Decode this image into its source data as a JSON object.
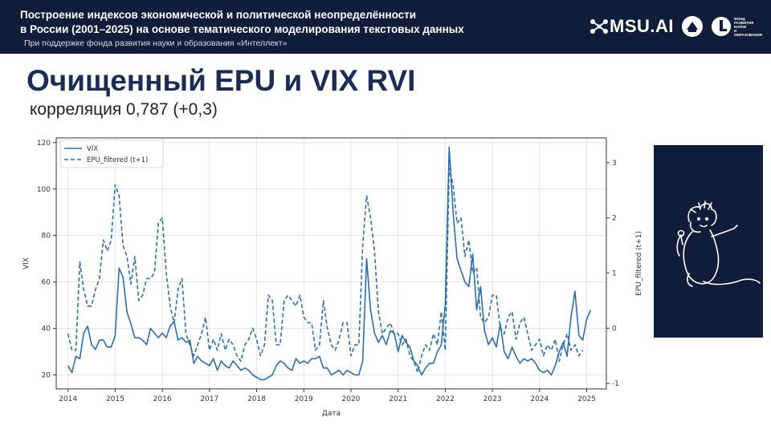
{
  "header": {
    "title_line1": "Построение индексов экономической и политической неопределённости",
    "title_line2": "в России (2001–2025) на основе тематического моделирования текстовых данных",
    "subtitle": "При поддержке фонда развития науки и образования «Интеллект»",
    "logo_text": "MSU.AI",
    "fund_logo_lines": [
      "ФОНД",
      "РАЗВИТИЯ",
      "НАУКИ",
      "И ОБРАЗОВАНИЯ"
    ]
  },
  "slide": {
    "title": "Очищенный EPU и VIX RVI",
    "subtitle": "корреляция 0,787 (+0,3)"
  },
  "colors": {
    "header_bg": "#0f1c3a",
    "title": "#1b2c55",
    "series": "#2e6ea6"
  },
  "chart_data": {
    "type": "line",
    "xlabel": "Дата",
    "ylabel": "VIX",
    "ylabel_right": "EPU_filtered (t+1)",
    "x_ticks": [
      "2014",
      "2015",
      "2016",
      "2017",
      "2018",
      "2019",
      "2020",
      "2021",
      "2022",
      "2023",
      "2024",
      "2025"
    ],
    "y_ticks": [
      20,
      40,
      60,
      80,
      100,
      120
    ],
    "y2_ticks": [
      -1,
      0,
      1,
      2,
      3
    ],
    "ylim": [
      14,
      122
    ],
    "y2lim": [
      -1.1,
      3.45
    ],
    "xlim": [
      "2013-10",
      "2025-06"
    ],
    "grid": true,
    "legend_position": "top-left",
    "series": [
      {
        "name": "VIX",
        "style": "solid",
        "axis": "left",
        "points": [
          [
            "2014-01",
            24
          ],
          [
            "2014-02",
            21
          ],
          [
            "2014-03",
            28
          ],
          [
            "2014-04",
            27
          ],
          [
            "2014-05",
            38
          ],
          [
            "2014-06",
            41
          ],
          [
            "2014-07",
            33
          ],
          [
            "2014-08",
            31
          ],
          [
            "2014-09",
            35
          ],
          [
            "2014-10",
            35
          ],
          [
            "2014-11",
            32
          ],
          [
            "2014-12",
            32
          ],
          [
            "2015-01",
            37
          ],
          [
            "2015-02",
            66
          ],
          [
            "2015-03",
            62
          ],
          [
            "2015-04",
            47
          ],
          [
            "2015-05",
            42
          ],
          [
            "2015-06",
            36
          ],
          [
            "2015-07",
            36
          ],
          [
            "2015-08",
            35
          ],
          [
            "2015-09",
            33
          ],
          [
            "2015-10",
            40
          ],
          [
            "2015-11",
            38
          ],
          [
            "2015-12",
            36
          ],
          [
            "2016-01",
            38
          ],
          [
            "2016-02",
            36
          ],
          [
            "2016-03",
            41
          ],
          [
            "2016-04",
            43
          ],
          [
            "2016-05",
            35
          ],
          [
            "2016-06",
            36
          ],
          [
            "2016-07",
            34
          ],
          [
            "2016-08",
            35
          ],
          [
            "2016-09",
            25
          ],
          [
            "2016-10",
            28
          ],
          [
            "2016-11",
            26
          ],
          [
            "2016-12",
            25
          ],
          [
            "2017-01",
            24
          ],
          [
            "2017-02",
            27
          ],
          [
            "2017-03",
            22
          ],
          [
            "2017-04",
            26
          ],
          [
            "2017-05",
            24
          ],
          [
            "2017-06",
            23
          ],
          [
            "2017-07",
            26
          ],
          [
            "2017-08",
            24
          ],
          [
            "2017-09",
            22
          ],
          [
            "2017-10",
            23
          ],
          [
            "2017-11",
            22
          ],
          [
            "2017-12",
            20
          ],
          [
            "2018-01",
            19
          ],
          [
            "2018-02",
            18
          ],
          [
            "2018-03",
            18
          ],
          [
            "2018-04",
            19
          ],
          [
            "2018-05",
            20
          ],
          [
            "2018-06",
            24
          ],
          [
            "2018-07",
            26
          ],
          [
            "2018-08",
            25
          ],
          [
            "2018-09",
            23
          ],
          [
            "2018-10",
            22
          ],
          [
            "2018-11",
            27
          ],
          [
            "2018-12",
            25
          ],
          [
            "2019-01",
            26
          ],
          [
            "2019-02",
            25
          ],
          [
            "2019-03",
            27
          ],
          [
            "2019-04",
            27
          ],
          [
            "2019-05",
            28
          ],
          [
            "2019-06",
            23
          ],
          [
            "2019-07",
            23
          ],
          [
            "2019-08",
            20
          ],
          [
            "2019-09",
            21
          ],
          [
            "2019-10",
            22
          ],
          [
            "2019-11",
            20
          ],
          [
            "2019-12",
            22
          ],
          [
            "2020-01",
            21
          ],
          [
            "2020-02",
            20
          ],
          [
            "2020-03",
            20
          ],
          [
            "2020-04",
            26
          ],
          [
            "2020-05",
            70
          ],
          [
            "2020-06",
            48
          ],
          [
            "2020-07",
            38
          ],
          [
            "2020-08",
            34
          ],
          [
            "2020-09",
            37
          ],
          [
            "2020-10",
            33
          ],
          [
            "2020-11",
            39
          ],
          [
            "2020-12",
            38
          ],
          [
            "2021-01",
            30
          ],
          [
            "2021-02",
            37
          ],
          [
            "2021-03",
            34
          ],
          [
            "2021-04",
            32
          ],
          [
            "2021-05",
            26
          ],
          [
            "2021-06",
            24
          ],
          [
            "2021-07",
            20
          ],
          [
            "2021-08",
            23
          ],
          [
            "2021-09",
            25
          ],
          [
            "2021-10",
            25
          ],
          [
            "2021-11",
            30
          ],
          [
            "2021-12",
            33
          ],
          [
            "2022-01",
            50
          ],
          [
            "2022-02",
            118
          ],
          [
            "2022-03",
            90
          ],
          [
            "2022-04",
            70
          ],
          [
            "2022-05",
            65
          ],
          [
            "2022-06",
            60
          ],
          [
            "2022-07",
            58
          ],
          [
            "2022-08",
            72
          ],
          [
            "2022-09",
            48
          ],
          [
            "2022-10",
            58
          ],
          [
            "2022-11",
            39
          ],
          [
            "2022-12",
            33
          ],
          [
            "2023-01",
            36
          ],
          [
            "2023-02",
            32
          ],
          [
            "2023-03",
            42
          ],
          [
            "2023-04",
            30
          ],
          [
            "2023-05",
            27
          ],
          [
            "2023-06",
            32
          ],
          [
            "2023-07",
            28
          ],
          [
            "2023-08",
            25
          ],
          [
            "2023-09",
            27
          ],
          [
            "2023-10",
            26
          ],
          [
            "2023-11",
            27
          ],
          [
            "2023-12",
            25
          ],
          [
            "2024-01",
            22
          ],
          [
            "2024-02",
            21
          ],
          [
            "2024-03",
            22
          ],
          [
            "2024-04",
            20
          ],
          [
            "2024-05",
            24
          ],
          [
            "2024-06",
            30
          ],
          [
            "2024-07",
            34
          ],
          [
            "2024-08",
            28
          ],
          [
            "2024-09",
            45
          ],
          [
            "2024-10",
            56
          ],
          [
            "2024-11",
            37
          ],
          [
            "2024-12",
            35
          ],
          [
            "2025-01",
            44
          ],
          [
            "2025-02",
            48
          ]
        ]
      },
      {
        "name": "EPU_filtered (t+1)",
        "style": "dashed",
        "axis": "right",
        "points": [
          [
            "2014-01",
            -0.1
          ],
          [
            "2014-02",
            -0.4
          ],
          [
            "2014-03",
            -0.4
          ],
          [
            "2014-04",
            1.2
          ],
          [
            "2014-05",
            0.7
          ],
          [
            "2014-06",
            0.4
          ],
          [
            "2014-07",
            0.4
          ],
          [
            "2014-08",
            0.7
          ],
          [
            "2014-09",
            0.9
          ],
          [
            "2014-10",
            1.6
          ],
          [
            "2014-11",
            1.4
          ],
          [
            "2014-12",
            1.6
          ],
          [
            "2015-01",
            2.6
          ],
          [
            "2015-02",
            2.4
          ],
          [
            "2015-03",
            1.5
          ],
          [
            "2015-04",
            1.3
          ],
          [
            "2015-05",
            0.8
          ],
          [
            "2015-06",
            1.3
          ],
          [
            "2015-07",
            0.5
          ],
          [
            "2015-08",
            0.6
          ],
          [
            "2015-09",
            0.9
          ],
          [
            "2015-10",
            0.9
          ],
          [
            "2015-11",
            1.0
          ],
          [
            "2015-12",
            1.9
          ],
          [
            "2016-01",
            2.0
          ],
          [
            "2016-02",
            1.0
          ],
          [
            "2016-03",
            0.4
          ],
          [
            "2016-04",
            0.1
          ],
          [
            "2016-05",
            0.7
          ],
          [
            "2016-06",
            0.9
          ],
          [
            "2016-07",
            -0.1
          ],
          [
            "2016-08",
            -0.3
          ],
          [
            "2016-09",
            -0.5
          ],
          [
            "2016-10",
            -0.3
          ],
          [
            "2016-11",
            -0.1
          ],
          [
            "2016-12",
            0.2
          ],
          [
            "2017-01",
            -0.4
          ],
          [
            "2017-02",
            -0.2
          ],
          [
            "2017-03",
            -0.4
          ],
          [
            "2017-04",
            -0.1
          ],
          [
            "2017-05",
            -0.4
          ],
          [
            "2017-06",
            -0.2
          ],
          [
            "2017-07",
            -0.3
          ],
          [
            "2017-08",
            -0.5
          ],
          [
            "2017-09",
            -0.6
          ],
          [
            "2017-10",
            -0.3
          ],
          [
            "2017-11",
            -0.2
          ],
          [
            "2017-12",
            0.0
          ],
          [
            "2018-01",
            -0.2
          ],
          [
            "2018-02",
            -0.5
          ],
          [
            "2018-03",
            -0.3
          ],
          [
            "2018-04",
            0.6
          ],
          [
            "2018-05",
            0.5
          ],
          [
            "2018-06",
            -0.3
          ],
          [
            "2018-07",
            -0.3
          ],
          [
            "2018-08",
            0.5
          ],
          [
            "2018-09",
            0.6
          ],
          [
            "2018-10",
            0.5
          ],
          [
            "2018-11",
            0.4
          ],
          [
            "2018-12",
            0.6
          ],
          [
            "2019-01",
            0.2
          ],
          [
            "2019-02",
            0.1
          ],
          [
            "2019-03",
            0.1
          ],
          [
            "2019-04",
            -0.4
          ],
          [
            "2019-05",
            -0.3
          ],
          [
            "2019-06",
            0.5
          ],
          [
            "2019-07",
            0.0
          ],
          [
            "2019-08",
            -0.3
          ],
          [
            "2019-09",
            -0.4
          ],
          [
            "2019-10",
            -0.2
          ],
          [
            "2019-11",
            0.1
          ],
          [
            "2019-12",
            0.1
          ],
          [
            "2020-01",
            -0.5
          ],
          [
            "2020-02",
            -0.3
          ],
          [
            "2020-03",
            -0.3
          ],
          [
            "2020-04",
            1.5
          ],
          [
            "2020-05",
            2.4
          ],
          [
            "2020-06",
            2.0
          ],
          [
            "2020-07",
            1.4
          ],
          [
            "2020-08",
            0.3
          ],
          [
            "2020-09",
            -0.1
          ],
          [
            "2020-10",
            0.0
          ],
          [
            "2020-11",
            0.1
          ],
          [
            "2020-12",
            -0.1
          ],
          [
            "2021-01",
            -0.1
          ],
          [
            "2021-02",
            -0.3
          ],
          [
            "2021-03",
            -0.2
          ],
          [
            "2021-04",
            -0.5
          ],
          [
            "2021-05",
            -0.6
          ],
          [
            "2021-06",
            -0.8
          ],
          [
            "2021-07",
            -0.5
          ],
          [
            "2021-08",
            -0.3
          ],
          [
            "2021-09",
            -0.4
          ],
          [
            "2021-10",
            -0.1
          ],
          [
            "2021-11",
            -0.3
          ],
          [
            "2021-12",
            0.3
          ],
          [
            "2022-01",
            -0.4
          ],
          [
            "2022-02",
            2.9
          ],
          [
            "2022-03",
            2.6
          ],
          [
            "2022-04",
            1.9
          ],
          [
            "2022-05",
            2.0
          ],
          [
            "2022-06",
            1.3
          ],
          [
            "2022-07",
            1.6
          ],
          [
            "2022-08",
            1.0
          ],
          [
            "2022-09",
            1.1
          ],
          [
            "2022-10",
            0.2
          ],
          [
            "2022-11",
            0.1
          ],
          [
            "2022-12",
            0.2
          ],
          [
            "2023-01",
            0.6
          ],
          [
            "2023-02",
            0.6
          ],
          [
            "2023-03",
            0.0
          ],
          [
            "2023-04",
            -0.1
          ],
          [
            "2023-05",
            0.2
          ],
          [
            "2023-06",
            0.3
          ],
          [
            "2023-07",
            -0.2
          ],
          [
            "2023-08",
            0.1
          ],
          [
            "2023-09",
            0.2
          ],
          [
            "2023-10",
            -0.1
          ],
          [
            "2023-11",
            -0.4
          ],
          [
            "2023-12",
            -0.3
          ],
          [
            "2024-01",
            -0.2
          ],
          [
            "2024-02",
            -0.5
          ],
          [
            "2024-03",
            -0.3
          ],
          [
            "2024-04",
            -0.4
          ],
          [
            "2024-05",
            -0.2
          ],
          [
            "2024-06",
            -0.6
          ],
          [
            "2024-07",
            -0.3
          ],
          [
            "2024-08",
            -0.1
          ],
          [
            "2024-09",
            -0.4
          ],
          [
            "2024-10",
            -0.3
          ],
          [
            "2024-11",
            -0.5
          ],
          [
            "2024-12",
            -0.4
          ]
        ]
      }
    ]
  }
}
